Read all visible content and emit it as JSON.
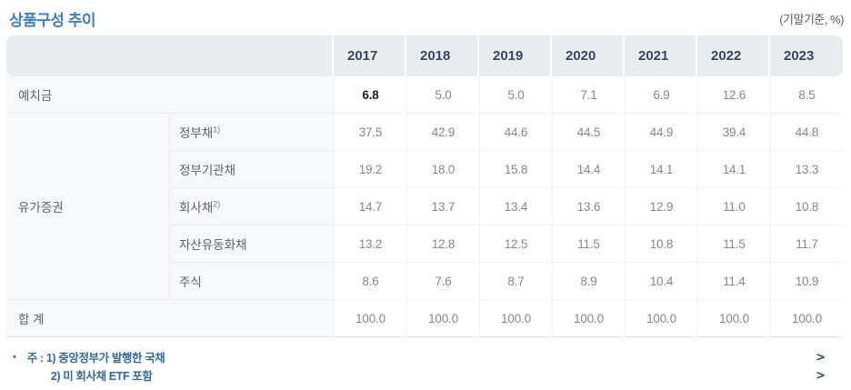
{
  "page": {
    "title": "상품구성 추이",
    "unit_note": "(기말기준, %)"
  },
  "table": {
    "years": [
      "2017",
      "2018",
      "2019",
      "2020",
      "2021",
      "2022",
      "2023"
    ],
    "rows": [
      {
        "label": "예치금",
        "values": [
          "6.8",
          "5.0",
          "5.0",
          "7.1",
          "6.9",
          "12.6",
          "8.5"
        ]
      },
      {
        "group": "유가증권",
        "label": "정부채",
        "sup": "1)",
        "values": [
          "37.5",
          "42.9",
          "44.6",
          "44.5",
          "44.9",
          "39.4",
          "44.8"
        ]
      },
      {
        "label": "정부기관채",
        "values": [
          "19.2",
          "18.0",
          "15.8",
          "14.4",
          "14.1",
          "14.1",
          "13.3"
        ]
      },
      {
        "label": "회사채",
        "sup": "2)",
        "values": [
          "14.7",
          "13.7",
          "13.4",
          "13.6",
          "12.9",
          "11.0",
          "10.8"
        ]
      },
      {
        "label": "자산유동화채",
        "values": [
          "13.2",
          "12.8",
          "12.5",
          "11.5",
          "10.8",
          "11.5",
          "11.7"
        ]
      },
      {
        "label": "주식",
        "values": [
          "8.6",
          "7.6",
          "8.7",
          "8.9",
          "10.4",
          "11.4",
          "10.9"
        ]
      },
      {
        "label": "합 계",
        "values": [
          "100.0",
          "100.0",
          "100.0",
          "100.0",
          "100.0",
          "100.0",
          "100.0"
        ]
      }
    ]
  },
  "footnotes": {
    "bullet": "•",
    "line1": "주 : 1) 중앙정부가 발행한 국채",
    "line2": "2) 미 회사채 ETF 포함",
    "chevron": ">"
  },
  "colors": {
    "title_blue": "#3f7dc0",
    "note_blue": "#35699c",
    "chevron_navy": "#2e4a63",
    "header_bg": "#e9ecef",
    "header_text": "#39455a",
    "label_bg": "#f7f8f9",
    "value_gray": "#83878b",
    "emphasis_black": "#1f1f1f",
    "sup_blue": "#4a86c8"
  },
  "chart_data": {
    "type": "table",
    "title": "상품구성 추이",
    "unit": "기말기준, %",
    "columns": [
      2017,
      2018,
      2019,
      2020,
      2021,
      2022,
      2023
    ],
    "series": [
      {
        "name": "예치금",
        "values": [
          6.8,
          5.0,
          5.0,
          7.1,
          6.9,
          12.6,
          8.5
        ]
      },
      {
        "name": "유가증권 - 정부채",
        "values": [
          37.5,
          42.9,
          44.6,
          44.5,
          44.9,
          39.4,
          44.8
        ]
      },
      {
        "name": "유가증권 - 정부기관채",
        "values": [
          19.2,
          18.0,
          15.8,
          14.4,
          14.1,
          14.1,
          13.3
        ]
      },
      {
        "name": "유가증권 - 회사채",
        "values": [
          14.7,
          13.7,
          13.4,
          13.6,
          12.9,
          11.0,
          10.8
        ]
      },
      {
        "name": "유가증권 - 자산유동화채",
        "values": [
          13.2,
          12.8,
          12.5,
          11.5,
          10.8,
          11.5,
          11.7
        ]
      },
      {
        "name": "유가증권 - 주식",
        "values": [
          8.6,
          7.6,
          8.7,
          8.9,
          10.4,
          11.4,
          10.9
        ]
      },
      {
        "name": "합계",
        "values": [
          100.0,
          100.0,
          100.0,
          100.0,
          100.0,
          100.0,
          100.0
        ]
      }
    ],
    "notes": [
      "1) 중앙정부가 발행한 국채",
      "2) 미 회사채 ETF 포함"
    ]
  }
}
